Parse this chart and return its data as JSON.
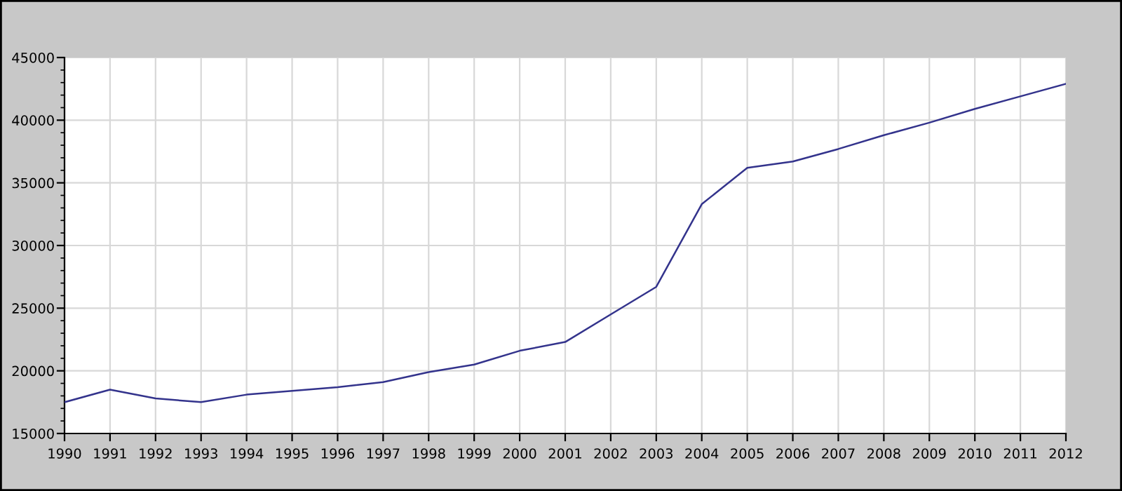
{
  "chart_data": {
    "type": "line",
    "x": [
      1990,
      1991,
      1992,
      1993,
      1994,
      1995,
      1996,
      1997,
      1998,
      1999,
      2000,
      2001,
      2002,
      2003,
      2004,
      2005,
      2006,
      2007,
      2008,
      2009,
      2010,
      2011,
      2012
    ],
    "series": [
      {
        "color": "#33338c",
        "values": [
          17500,
          18500,
          17800,
          17500,
          18100,
          18400,
          18700,
          19100,
          19900,
          20500,
          21600,
          22300,
          24500,
          26700,
          33300,
          36200,
          36700,
          37700,
          38800,
          39800,
          40900,
          41900,
          42900
        ]
      }
    ],
    "xlim": [
      1990,
      2012
    ],
    "xticks": [
      1990,
      1991,
      1992,
      1993,
      1994,
      1995,
      1996,
      1997,
      1998,
      1999,
      2000,
      2001,
      2002,
      2003,
      2004,
      2005,
      2006,
      2007,
      2008,
      2009,
      2010,
      2011,
      2012
    ],
    "ylim": [
      15000,
      45000
    ],
    "yticks": [
      15000,
      20000,
      25000,
      30000,
      35000,
      40000,
      45000
    ],
    "grid": true,
    "marker": "none",
    "line_style": "solid",
    "legend": false
  }
}
